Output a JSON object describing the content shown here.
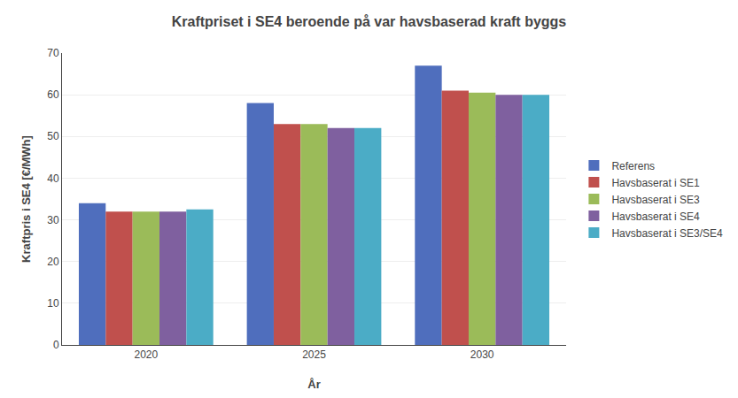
{
  "chart_data": {
    "type": "bar",
    "title": "Kraftpriset i SE4 beroende på var havsbaserad kraft byggs",
    "xlabel": "År",
    "ylabel": "Kraftpris i SE4 [€/MWh]",
    "categories": [
      "2020",
      "2025",
      "2030"
    ],
    "series": [
      {
        "name": "Referens",
        "color": "#4F6EBD",
        "values": [
          34,
          58,
          67
        ]
      },
      {
        "name": "Havsbaserat i SE1",
        "color": "#C0504D",
        "values": [
          32,
          53,
          61
        ]
      },
      {
        "name": "Havsbaserat i SE3",
        "color": "#9BBB59",
        "values": [
          32,
          53,
          60.5
        ]
      },
      {
        "name": "Havsbaserat i SE4",
        "color": "#7F609F",
        "values": [
          32,
          52,
          60
        ]
      },
      {
        "name": "Havsbaserat i SE3/SE4",
        "color": "#4BACC6",
        "values": [
          32.5,
          52,
          60
        ]
      }
    ],
    "ylim": [
      0,
      70
    ],
    "yticks": [
      0,
      10,
      20,
      30,
      40,
      50,
      60,
      70
    ],
    "grid": true,
    "legend": "right"
  }
}
